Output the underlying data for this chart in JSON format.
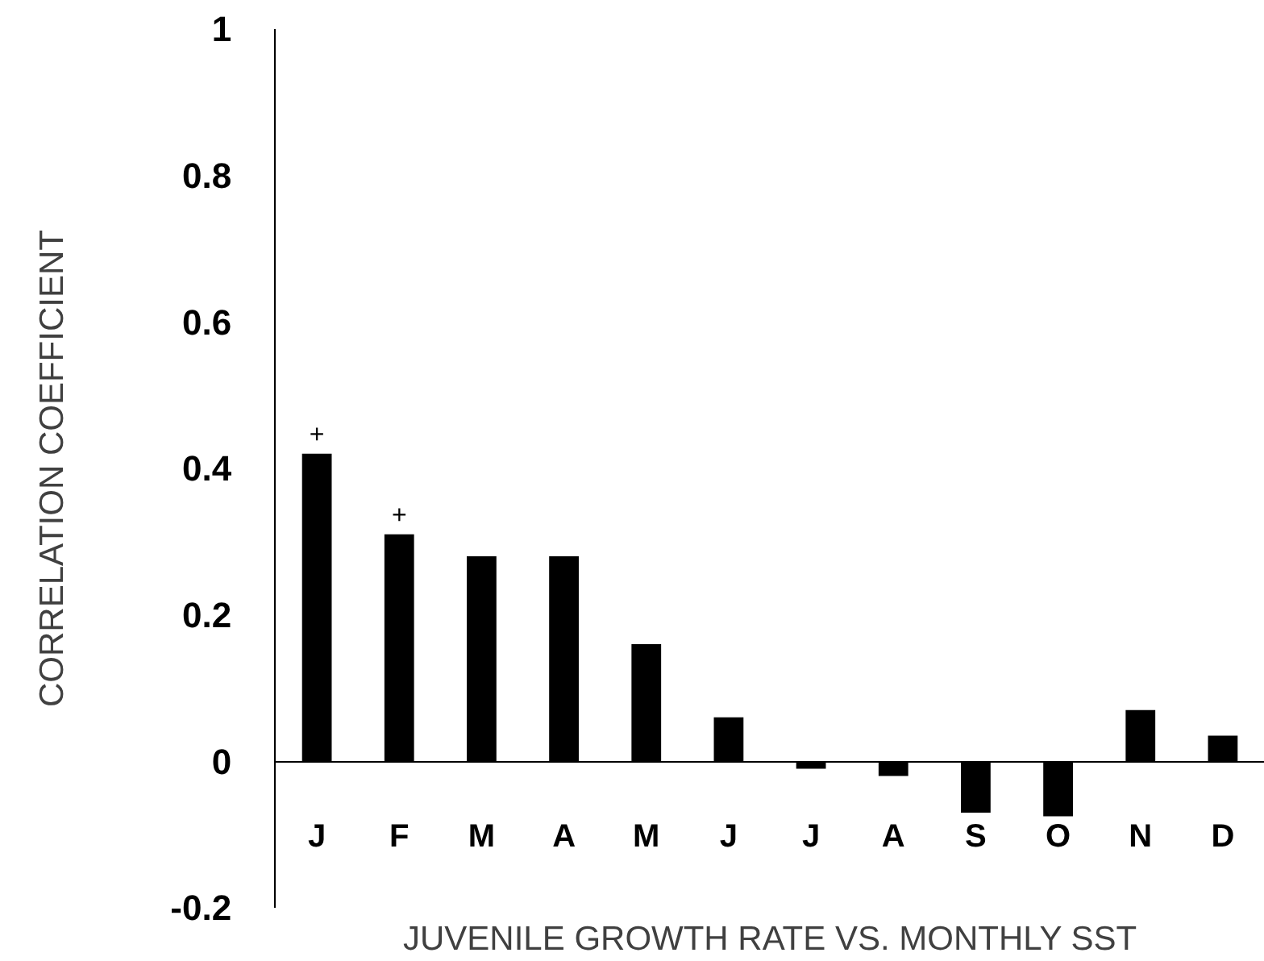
{
  "chart_data": {
    "type": "bar",
    "xlabel": "JUVENILE GROWTH RATE VS. MONTHLY SST",
    "ylabel": "CORRELATION COEFFICIENT",
    "categories": [
      "J",
      "F",
      "M",
      "A",
      "M",
      "J",
      "J",
      "A",
      "S",
      "O",
      "N",
      "D"
    ],
    "values": [
      0.42,
      0.31,
      0.28,
      0.28,
      0.16,
      0.06,
      -0.01,
      -0.02,
      -0.07,
      -0.075,
      0.07,
      0.035
    ],
    "color": "#000000",
    "value_labels": [
      "+",
      "+",
      null,
      null,
      null,
      null,
      null,
      null,
      null,
      null,
      null,
      null
    ],
    "ylim": [
      -0.2,
      1
    ],
    "yticks": [
      -0.2,
      0,
      0.2,
      0.4,
      0.6,
      0.8,
      1
    ],
    "grid": false
  }
}
